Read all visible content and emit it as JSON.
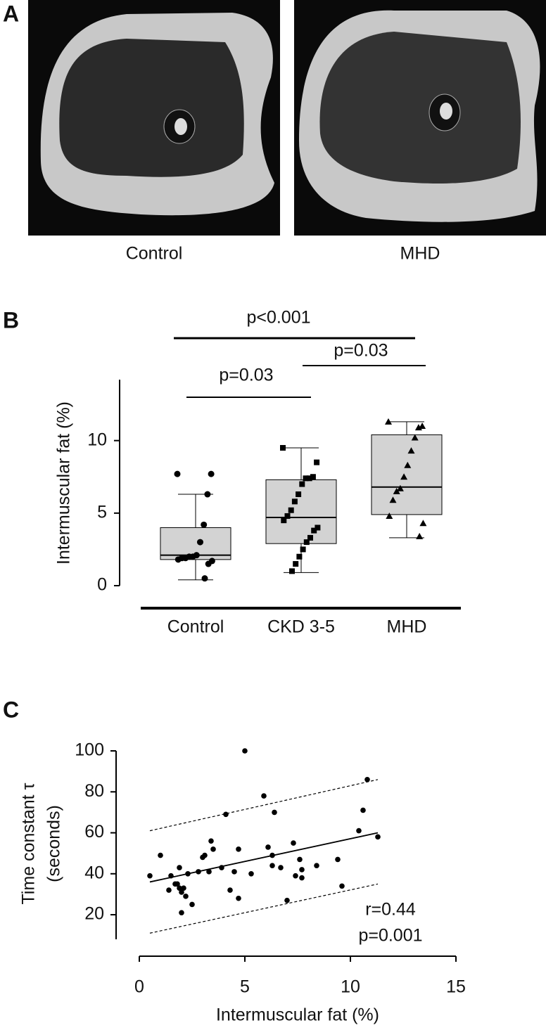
{
  "panel_a": {
    "label": "A",
    "captions": [
      "Control",
      "MHD"
    ]
  },
  "chart_data": [
    {
      "type": "box",
      "panel_label": "B",
      "y_label": "Intermuscular fat (%)",
      "categories": [
        "Control",
        "CKD 3-5",
        "MHD"
      ],
      "markers": [
        "circle",
        "square",
        "triangle"
      ],
      "box_color": "#d3d3d3",
      "ylim": [
        0,
        14.2
      ],
      "yticks": [
        0,
        5,
        10
      ],
      "min": [
        0.4,
        0.9,
        3.3
      ],
      "q1": [
        1.8,
        2.9,
        4.9
      ],
      "median": [
        2.1,
        4.7,
        6.8
      ],
      "q3": [
        4.0,
        7.3,
        10.4
      ],
      "max": [
        6.3,
        9.5,
        11.3
      ],
      "points": [
        [
          7.7,
          7.7,
          6.3,
          4.2,
          3.0,
          2.1,
          2.0,
          2.0,
          1.9,
          1.9,
          1.8,
          1.7,
          1.5,
          0.5
        ],
        [
          9.5,
          8.5,
          7.5,
          7.4,
          7.4,
          7.0,
          6.3,
          5.8,
          5.2,
          4.8,
          4.5,
          4.0,
          3.8,
          3.3,
          3.0,
          2.5,
          2.0,
          1.5,
          1.0
        ],
        [
          11.3,
          11.0,
          10.9,
          10.2,
          9.3,
          8.3,
          7.5,
          6.7,
          6.5,
          5.9,
          4.8,
          4.3,
          3.4
        ]
      ],
      "annotations": [
        "p<0.001",
        "p=0.03",
        "p=0.03"
      ]
    },
    {
      "type": "scatter",
      "panel_label": "C",
      "y_label": [
        "Time constant τ",
        "(seconds)"
      ],
      "x_label": "Intermuscular fat (%)",
      "xlim": [
        0,
        15
      ],
      "xticks": [
        0,
        5,
        10,
        15
      ],
      "ylim": [
        8,
        100
      ],
      "yticks": [
        20,
        40,
        60,
        80,
        100
      ],
      "x": [
        0.5,
        1.0,
        1.4,
        1.5,
        1.7,
        1.8,
        1.9,
        1.9,
        2.0,
        2.0,
        2.1,
        2.2,
        2.3,
        2.5,
        2.8,
        3.0,
        3.1,
        3.3,
        3.4,
        3.5,
        3.9,
        4.1,
        4.3,
        4.5,
        4.7,
        4.7,
        5.0,
        5.3,
        5.9,
        6.1,
        6.3,
        6.3,
        6.4,
        6.7,
        7.0,
        7.3,
        7.4,
        7.6,
        7.7,
        7.7,
        8.4,
        9.4,
        9.6,
        10.4,
        10.6,
        10.8,
        11.3
      ],
      "y": [
        39,
        49,
        32,
        39,
        35,
        35,
        43,
        33,
        21,
        31,
        33,
        29,
        40,
        25,
        41,
        48,
        49,
        41,
        56,
        52,
        43,
        69,
        32,
        41,
        52,
        28,
        100,
        40,
        78,
        53,
        44,
        49,
        70,
        43,
        27,
        55,
        39,
        47,
        38,
        42,
        44,
        47,
        34,
        61,
        71,
        86,
        58
      ],
      "fit_line": {
        "x": [
          0.5,
          11.3
        ],
        "y": [
          36,
          60
        ]
      },
      "upper_bound": {
        "x": [
          0.5,
          11.3
        ],
        "y": [
          61,
          86
        ]
      },
      "lower_bound": {
        "x": [
          0.5,
          11.3
        ],
        "y": [
          11,
          35
        ]
      },
      "annotations": [
        "r=0.44",
        "p=0.001"
      ]
    }
  ]
}
